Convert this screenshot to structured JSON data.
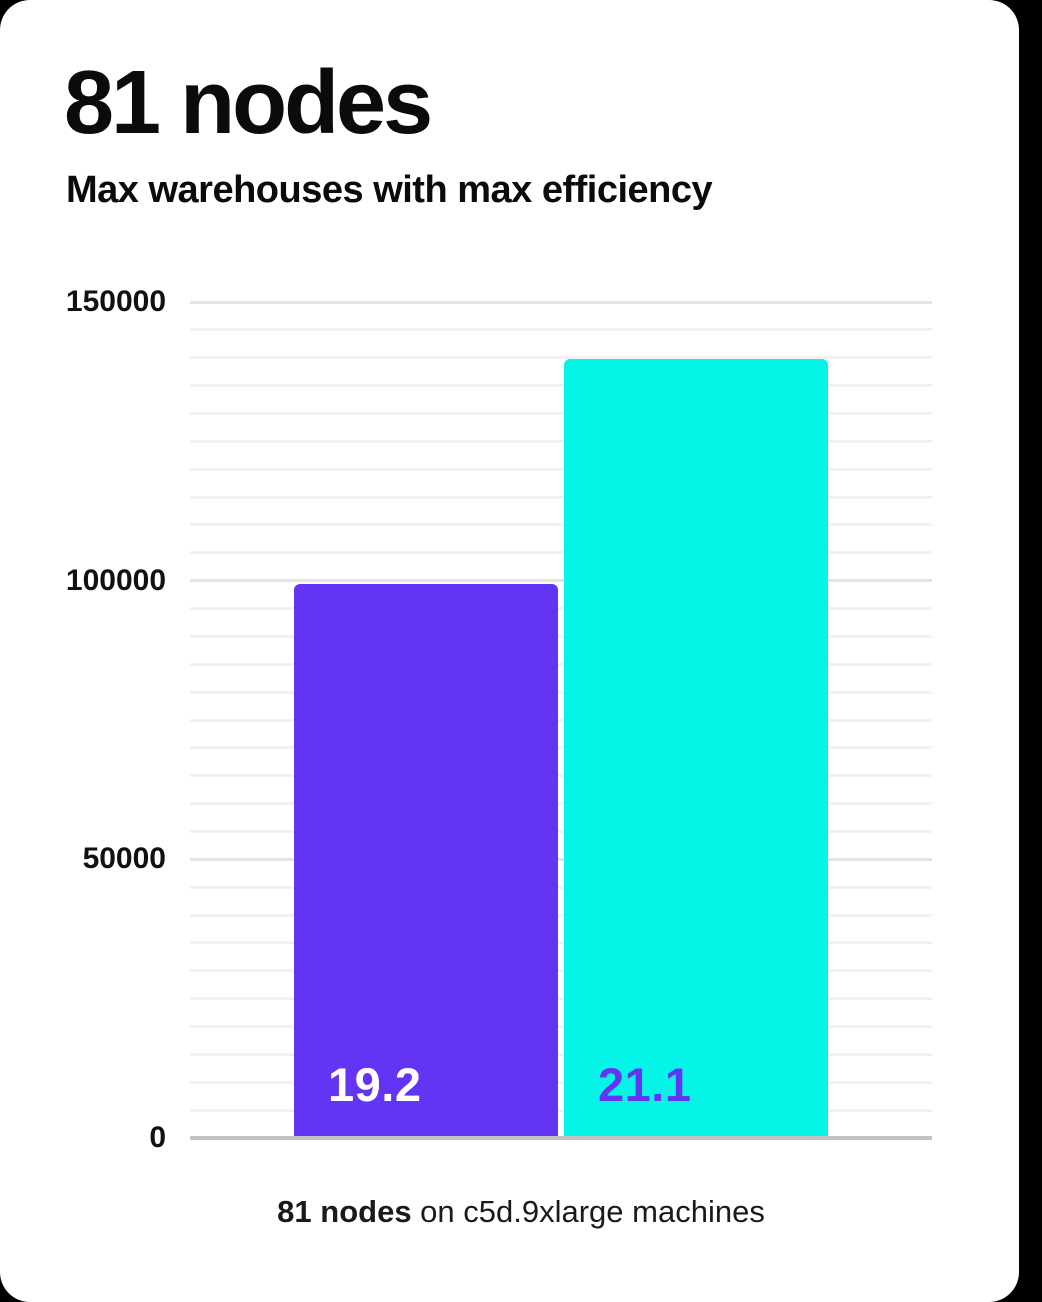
{
  "header": {
    "title": "81 nodes",
    "subtitle": "Max warehouses with max efficiency"
  },
  "caption": {
    "bold": "81 nodes",
    "rest": " on c5d.9xlarge machines"
  },
  "chart_data": {
    "type": "bar",
    "title": "81 nodes",
    "subtitle": "Max warehouses with max efficiency",
    "caption": "81 nodes on c5d.9xlarge machines",
    "categories": [
      "19.2",
      "21.1"
    ],
    "bars": [
      {
        "data_label": "19.2",
        "value": 99000,
        "color": "#6434f5",
        "label_color": "#ffffff"
      },
      {
        "data_label": "21.1",
        "value": 139500,
        "color": "#04f5e8",
        "label_color": "#6434f5"
      }
    ],
    "y_axis": {
      "min": 0,
      "max": 150000,
      "ticks": [
        0,
        50000,
        100000,
        150000
      ],
      "minor_grid_step": 5000,
      "major_step": 50000
    },
    "xlabel": "",
    "ylabel": "",
    "legend": "none",
    "grid": "horizontal-minor-and-major",
    "colors": {
      "grid_minor": "#f2f2f2",
      "grid_major": "#e4e4e4",
      "axis_line": "#c3c3c3",
      "background": "#ffffff",
      "outside_background": "#000000"
    }
  }
}
